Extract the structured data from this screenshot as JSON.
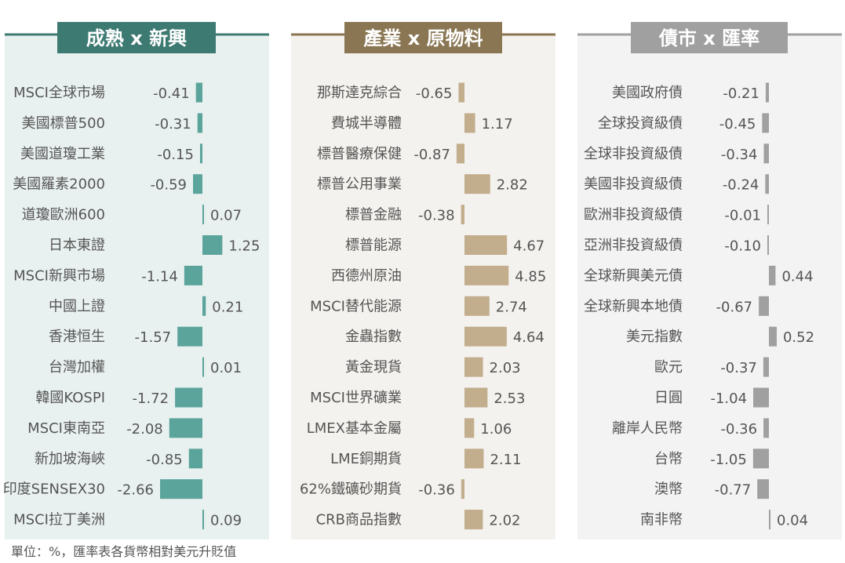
{
  "footnote": "單位：%，匯率表各貨幣相對美元升貶值",
  "chart_data": [
    {
      "type": "bar",
      "orientation": "horizontal",
      "title": "成熟 x 新興",
      "colors": {
        "bar": "#5ba49b",
        "header": "#3d7a72",
        "panel": "#e9f1f0"
      },
      "categories": [
        "MSCI全球市場",
        "美國標普500",
        "美國道瓊工業",
        "美國羅素2000",
        "道瓊歐洲600",
        "日本東證",
        "MSCI新興市場",
        "中國上證",
        "香港恒生",
        "台灣加權",
        "韓國KOSPI",
        "MSCI東南亞",
        "新加坡海峽",
        "印度SENSEX30",
        "MSCI拉丁美洲"
      ],
      "values": [
        -0.41,
        -0.31,
        -0.15,
        -0.59,
        0.07,
        1.25,
        -1.14,
        0.21,
        -1.57,
        0.01,
        -1.72,
        -2.08,
        -0.85,
        -2.66,
        0.09
      ]
    },
    {
      "type": "bar",
      "orientation": "horizontal",
      "title": "產業 x 原物料",
      "colors": {
        "bar": "#c2ad8d",
        "header": "#8a7652",
        "panel": "#f4f2ee"
      },
      "categories": [
        "那斯達克綜合",
        "費城半導體",
        "標普醫療保健",
        "標普公用事業",
        "標普金融",
        "標普能源",
        "西德州原油",
        "MSCI替代能源",
        "金蟲指數",
        "黃金現貨",
        "MSCI世界礦業",
        "LMEX基本金屬",
        "LME銅期貨",
        "62%鐵礦砂期貨",
        "CRB商品指數"
      ],
      "values": [
        -0.65,
        1.17,
        -0.87,
        2.82,
        -0.38,
        4.67,
        4.85,
        2.74,
        4.64,
        2.03,
        2.53,
        1.06,
        2.11,
        -0.36,
        2.02
      ]
    },
    {
      "type": "bar",
      "orientation": "horizontal",
      "title": "債市 x 匯率",
      "colors": {
        "bar": "#a0a0a0",
        "header": "#a0a0a0",
        "panel": "#f3f3f3"
      },
      "categories": [
        "美國政府債",
        "全球投資級債",
        "全球非投資級債",
        "美國非投資級債",
        "歐洲非投資級債",
        "亞洲非投資級債",
        "全球新興美元債",
        "全球新興本地債",
        "美元指數",
        "歐元",
        "日圓",
        "離岸人民幣",
        "台幣",
        "澳幣",
        "南非幣"
      ],
      "values": [
        -0.21,
        -0.45,
        -0.34,
        -0.24,
        -0.01,
        -0.1,
        0.44,
        -0.67,
        0.52,
        -0.37,
        -1.04,
        -0.36,
        -1.05,
        -0.77,
        0.04
      ]
    }
  ]
}
